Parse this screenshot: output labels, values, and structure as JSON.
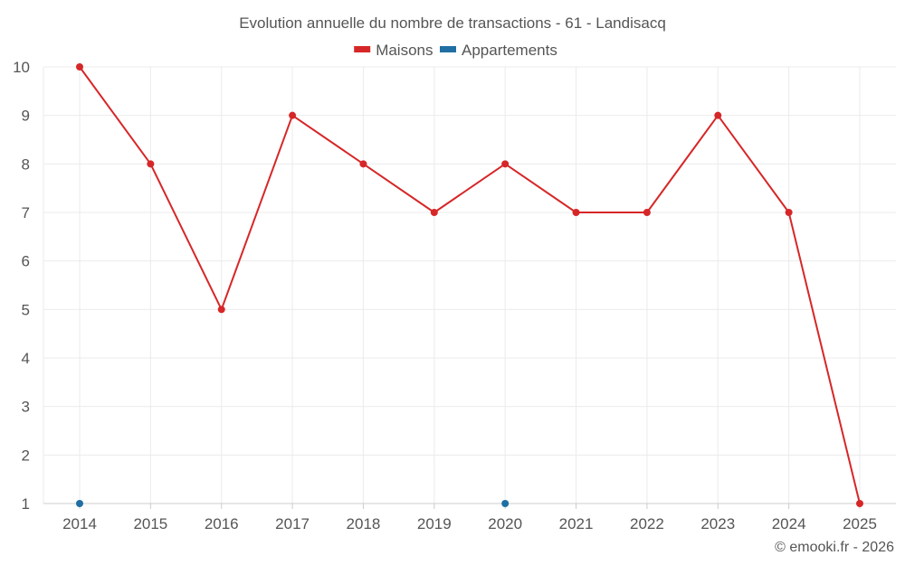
{
  "chart_data": {
    "type": "line",
    "title": "Evolution annuelle du nombre de transactions - 61 - Landisacq",
    "categories": [
      "2014",
      "2015",
      "2016",
      "2017",
      "2018",
      "2019",
      "2020",
      "2021",
      "2022",
      "2023",
      "2024",
      "2025"
    ],
    "series": [
      {
        "name": "Maisons",
        "color": "#d62728",
        "points": [
          {
            "x": "2014",
            "y": 10
          },
          {
            "x": "2015",
            "y": 8
          },
          {
            "x": "2016",
            "y": 5
          },
          {
            "x": "2017",
            "y": 9
          },
          {
            "x": "2018",
            "y": 8
          },
          {
            "x": "2019",
            "y": 7
          },
          {
            "x": "2020",
            "y": 8
          },
          {
            "x": "2021",
            "y": 7
          },
          {
            "x": "2022",
            "y": 7
          },
          {
            "x": "2023",
            "y": 9
          },
          {
            "x": "2024",
            "y": 7
          },
          {
            "x": "2025",
            "y": 1
          }
        ]
      },
      {
        "name": "Appartements",
        "color": "#1f6fa3",
        "points": [
          {
            "x": "2014",
            "y": 1
          },
          {
            "x": "2020",
            "y": 1
          }
        ]
      }
    ],
    "ylim": [
      1,
      10
    ],
    "yticks": [
      1,
      2,
      3,
      4,
      5,
      6,
      7,
      8,
      9,
      10
    ],
    "xlabel": "",
    "ylabel": "",
    "grid": true,
    "legend_position": "top-center"
  },
  "credit": "© emooki.fr - 2026"
}
